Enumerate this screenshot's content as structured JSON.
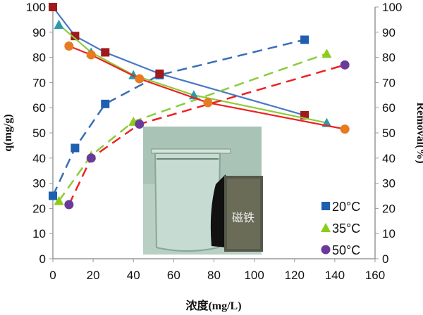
{
  "chart_data": {
    "type": "line",
    "xlabel": "浓度(mg/L)",
    "ylabel_left": "q(mg/g)",
    "ylabel_right": "Removal(%)",
    "xlim": [
      0,
      160
    ],
    "ylim_left": [
      0,
      100
    ],
    "ylim_right": [
      0,
      100
    ],
    "xticks": [
      "0",
      "20",
      "40",
      "60",
      "80",
      "100",
      "120",
      "140",
      "160"
    ],
    "yticks": [
      "0",
      "10",
      "20",
      "30",
      "40",
      "50",
      "60",
      "70",
      "80",
      "90",
      "100"
    ],
    "grid": false,
    "legend_position": "right",
    "legend": [
      {
        "label": "20°C",
        "marker": "square",
        "color": "#1f5fb0"
      },
      {
        "label": "35°C",
        "marker": "triangle",
        "color": "#8ccc1c"
      },
      {
        "label": "50°C",
        "marker": "circle",
        "color": "#6a3a9a"
      }
    ],
    "series": [
      {
        "group": "20°C",
        "quantity": "q",
        "style": "dashed",
        "line_color": "#3a6eb5",
        "marker": "square",
        "marker_color": "#1f5fb0",
        "x": [
          0,
          11,
          26,
          53,
          125
        ],
        "y": [
          25,
          44,
          61.5,
          73,
          87
        ]
      },
      {
        "group": "20°C",
        "quantity": "removal",
        "style": "solid",
        "line_color": "#4a78c8",
        "marker": "square",
        "marker_color": "#a01a1a",
        "x": [
          0,
          11,
          26,
          53,
          125
        ],
        "y": [
          100,
          88.5,
          82,
          73.5,
          57
        ]
      },
      {
        "group": "35°C",
        "quantity": "q",
        "style": "dashed",
        "line_color": "#8ccc3c",
        "marker": "triangle",
        "marker_color": "#8ccc1c",
        "x": [
          3,
          19,
          40,
          136
        ],
        "y": [
          23,
          41,
          54.5,
          81.5
        ]
      },
      {
        "group": "35°C",
        "quantity": "removal",
        "style": "solid",
        "line_color": "#8ccc3c",
        "marker": "triangle",
        "marker_color": "#2a9aaa",
        "x": [
          3,
          19,
          40,
          70,
          136
        ],
        "y": [
          93,
          82,
          73,
          65,
          54
        ]
      },
      {
        "group": "50°C",
        "quantity": "q",
        "style": "dashed",
        "line_color": "#ee2222",
        "marker": "circle",
        "marker_color": "#6a3a9a",
        "x": [
          8,
          19,
          43,
          145
        ],
        "y": [
          21.5,
          40,
          53.5,
          77
        ]
      },
      {
        "group": "50°C",
        "quantity": "removal",
        "style": "solid",
        "line_color": "#ee2222",
        "marker": "circle",
        "marker_color": "#e87a22",
        "x": [
          8,
          19,
          43,
          77,
          145
        ],
        "y": [
          84.5,
          81,
          71.5,
          62,
          51.5
        ]
      }
    ],
    "inset_photo_label": "磁铁"
  }
}
